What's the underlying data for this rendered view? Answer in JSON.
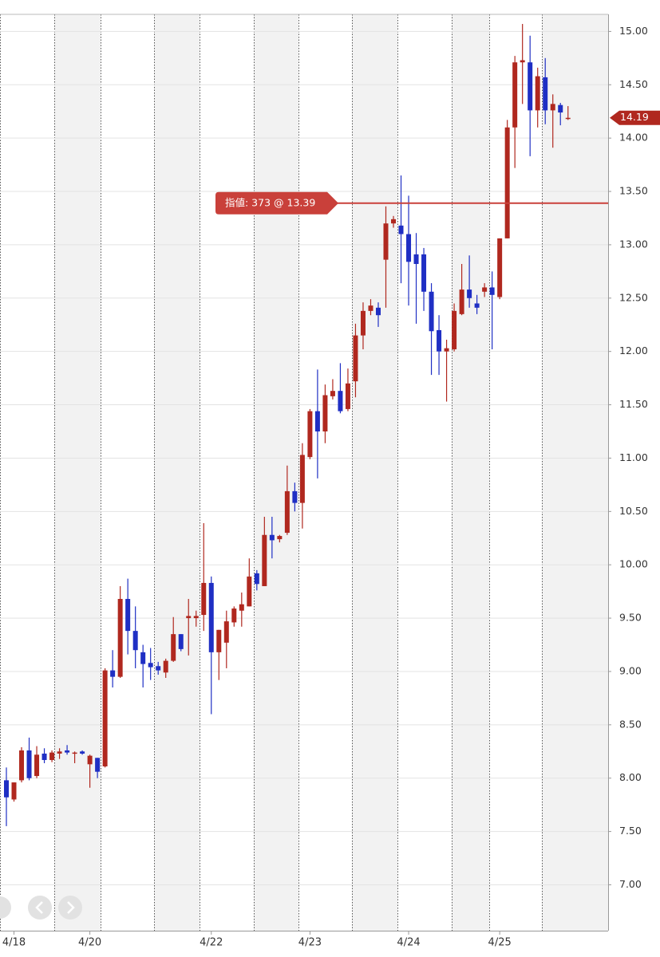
{
  "chart_data": {
    "type": "candlestick",
    "categories": [
      null,
      "4/18",
      null,
      null,
      null,
      null,
      null,
      null,
      null,
      null,
      null,
      "4/20",
      null,
      null,
      null,
      null,
      null,
      null,
      null,
      null,
      null,
      null,
      null,
      null,
      null,
      null,
      null,
      "4/22",
      null,
      null,
      null,
      null,
      null,
      null,
      null,
      null,
      null,
      null,
      null,
      null,
      "4/23",
      null,
      null,
      null,
      null,
      null,
      null,
      null,
      null,
      null,
      null,
      null,
      null,
      "4/24",
      null,
      null,
      null,
      null,
      null,
      null,
      null,
      null,
      null,
      null,
      null,
      "4/25",
      null,
      null,
      null,
      null,
      null,
      null,
      null,
      null,
      null
    ],
    "open": [
      7.98,
      7.8,
      7.98,
      8.26,
      8.02,
      8.23,
      8.17,
      8.23,
      8.26,
      8.23,
      8.25,
      8.13,
      8.19,
      8.11,
      9.01,
      8.95,
      9.68,
      9.38,
      9.18,
      9.08,
      9.05,
      8.99,
      9.1,
      9.35,
      9.5,
      9.5,
      9.53,
      9.83,
      9.18,
      9.27,
      9.46,
      9.57,
      9.61,
      9.92,
      9.8,
      10.28,
      10.24,
      10.3,
      10.69,
      10.58,
      11.01,
      11.44,
      11.25,
      11.58,
      11.63,
      11.46,
      11.72,
      12.15,
      12.38,
      12.41,
      12.86,
      13.2,
      13.18,
      13.1,
      12.91,
      12.91,
      12.56,
      12.2,
      12.0,
      12.02,
      12.35,
      12.58,
      12.45,
      12.56,
      12.6,
      12.51,
      13.06,
      14.1,
      14.71,
      14.71,
      14.26,
      14.57,
      14.26,
      14.31,
      14.18
    ],
    "high": [
      8.1,
      7.96,
      8.29,
      8.38,
      8.3,
      8.28,
      8.26,
      8.28,
      8.31,
      8.25,
      8.26,
      8.22,
      8.19,
      9.03,
      9.2,
      9.8,
      9.87,
      9.61,
      9.25,
      9.22,
      9.09,
      9.12,
      9.51,
      9.35,
      9.68,
      9.57,
      10.39,
      9.89,
      9.39,
      9.57,
      9.61,
      9.74,
      10.06,
      9.95,
      10.45,
      10.45,
      10.28,
      10.93,
      10.77,
      11.14,
      11.46,
      11.83,
      11.69,
      11.74,
      11.89,
      11.84,
      12.26,
      12.46,
      12.49,
      12.46,
      13.36,
      13.27,
      13.65,
      13.46,
      13.11,
      12.97,
      12.64,
      12.34,
      12.11,
      12.45,
      12.82,
      12.9,
      12.53,
      12.64,
      12.75,
      13.06,
      14.17,
      14.77,
      15.07,
      14.96,
      14.66,
      14.75,
      14.41,
      14.33,
      14.3
    ],
    "low": [
      7.55,
      7.78,
      7.96,
      7.98,
      8.0,
      8.14,
      8.15,
      8.18,
      8.22,
      8.14,
      8.22,
      7.91,
      8.0,
      8.1,
      8.85,
      8.94,
      9.16,
      9.03,
      8.85,
      8.92,
      8.97,
      8.94,
      9.09,
      9.19,
      9.15,
      9.42,
      9.38,
      8.6,
      8.92,
      9.03,
      9.42,
      9.42,
      9.61,
      9.76,
      9.8,
      10.06,
      10.21,
      10.28,
      10.5,
      10.34,
      10.99,
      10.81,
      11.14,
      11.55,
      11.42,
      11.44,
      11.57,
      12.02,
      12.34,
      12.23,
      12.41,
      13.16,
      12.64,
      12.43,
      12.26,
      12.38,
      11.78,
      11.78,
      11.53,
      12.0,
      12.34,
      12.41,
      12.35,
      12.51,
      12.02,
      12.49,
      13.06,
      13.72,
      14.32,
      13.83,
      14.1,
      14.13,
      13.91,
      14.12,
      14.17
    ],
    "close": [
      7.82,
      7.96,
      8.26,
      8.0,
      8.22,
      8.17,
      8.24,
      8.25,
      8.24,
      8.24,
      8.23,
      8.21,
      8.06,
      9.01,
      8.95,
      9.68,
      9.38,
      9.2,
      9.07,
      9.04,
      9.01,
      9.1,
      9.35,
      9.21,
      9.52,
      9.52,
      9.83,
      9.18,
      9.39,
      9.47,
      9.59,
      9.63,
      9.89,
      9.82,
      10.28,
      10.23,
      10.27,
      10.69,
      10.58,
      11.03,
      11.44,
      11.25,
      11.59,
      11.63,
      11.44,
      11.7,
      12.15,
      12.38,
      12.43,
      12.34,
      13.2,
      13.24,
      13.1,
      12.84,
      12.82,
      12.56,
      12.19,
      12.0,
      12.03,
      12.38,
      12.58,
      12.5,
      12.41,
      12.6,
      12.53,
      13.06,
      14.1,
      14.71,
      14.73,
      14.26,
      14.58,
      14.26,
      14.32,
      14.24,
      14.19
    ],
    "up_color": "#b0281f",
    "down_color": "#1f2fc4",
    "ylim": [
      6.57,
      15.16
    ],
    "yticks": [
      {
        "value": 7,
        "label": "7.00"
      },
      {
        "value": 7.5,
        "label": "7.50"
      },
      {
        "value": 8,
        "label": "8.00"
      },
      {
        "value": 8.5,
        "label": "8.50"
      },
      {
        "value": 9,
        "label": "9.00"
      },
      {
        "value": 9.5,
        "label": "9.50"
      },
      {
        "value": 10,
        "label": "10.00"
      },
      {
        "value": 10.5,
        "label": "10.50"
      },
      {
        "value": 11,
        "label": "11.00"
      },
      {
        "value": 11.5,
        "label": "11.50"
      },
      {
        "value": 12,
        "label": "12.00"
      },
      {
        "value": 12.5,
        "label": "12.50"
      },
      {
        "value": 13,
        "label": "13.00"
      },
      {
        "value": 13.5,
        "label": "13.50"
      },
      {
        "value": 14,
        "label": "14.00"
      },
      {
        "value": 14.5,
        "label": "14.50"
      },
      {
        "value": 15,
        "label": "15.00"
      }
    ],
    "grid": true,
    "order_line": {
      "value": 13.39,
      "label": "指値: 373 @ 13.39",
      "color": "#c9403a"
    },
    "last_price": {
      "value": 14.19,
      "color": "#b0281f"
    }
  }
}
